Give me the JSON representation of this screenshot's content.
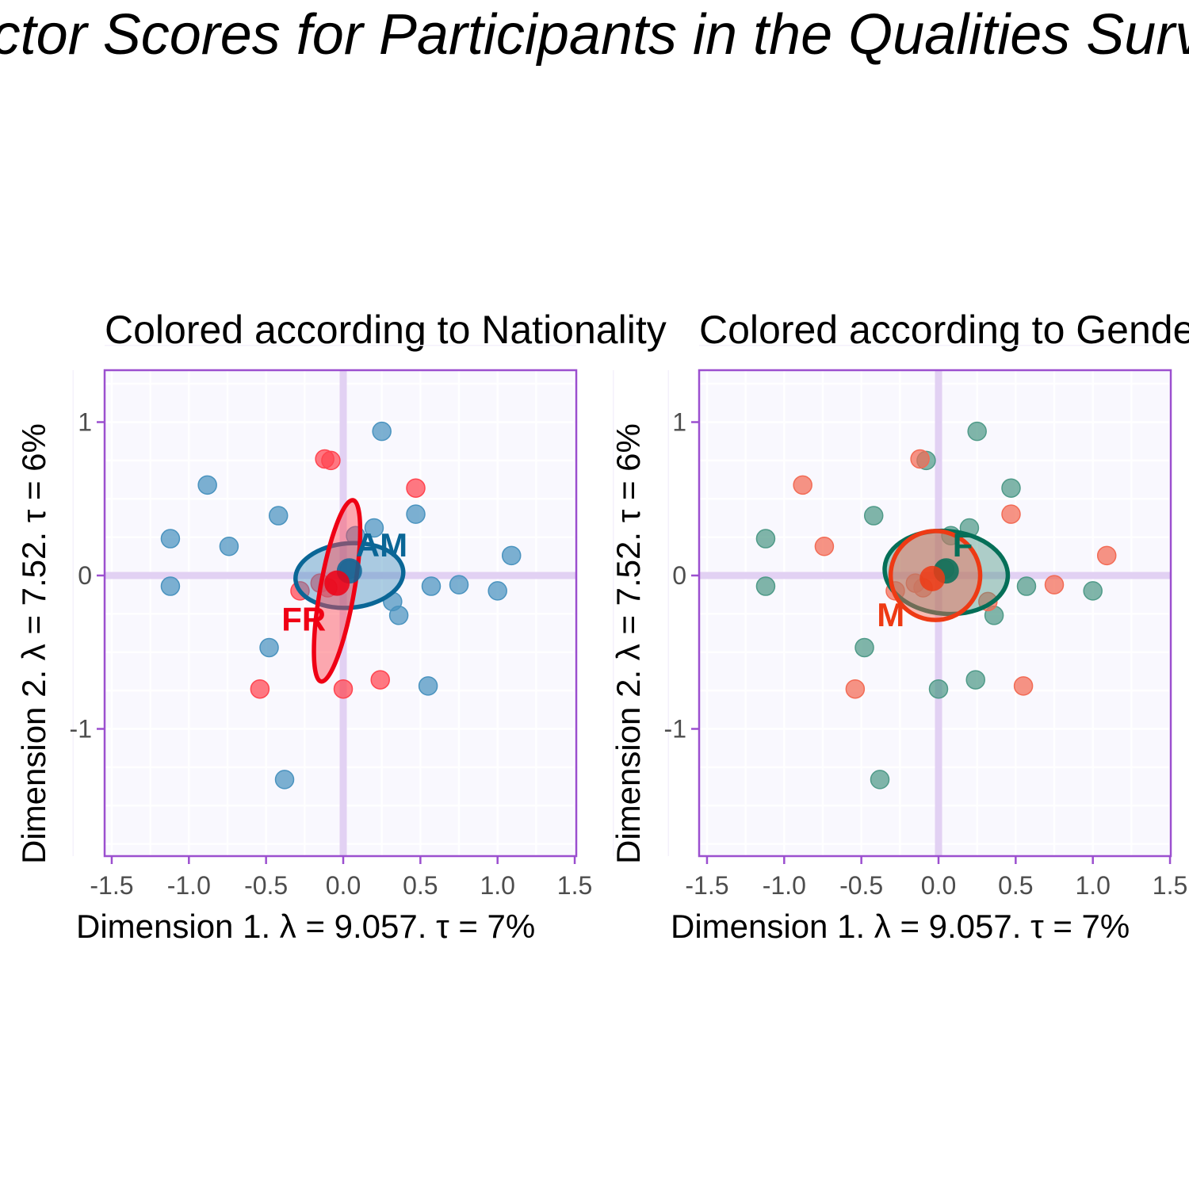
{
  "title": "Factor Scores for Participants in the Qualities Survey",
  "colors": {
    "background": "#ffffff",
    "panel_bg": "#f9f8fe",
    "frame": "#9b4fcf",
    "axis_line": "#e2d1f3",
    "grid_major": "#ffffff",
    "grid_minor": "#f4f1fb"
  },
  "panels": [
    {
      "title": "Colored according to Nationality",
      "xlabel": "Dimension 1.   λ = 9.057.  τ = 7%",
      "ylabel": "Dimension 2.   λ = 7.52.  τ = 6%"
    },
    {
      "title": "Colored according to Gender",
      "xlabel": "Dimension 1.   λ = 9.057.  τ = 7%",
      "ylabel": "Dimension 2.   λ = 7.52.  τ = 6%"
    }
  ],
  "chart_data": [
    {
      "type": "scatter",
      "title": "Colored according to Nationality",
      "xlabel": "Dimension 1.   λ = 9.057.  τ = 7%",
      "ylabel": "Dimension 2.   λ = 7.52.  τ = 6%",
      "xlim": [
        -1.5,
        1.5
      ],
      "ylim": [
        -1.8,
        1.3
      ],
      "xticks": [
        "-1.5",
        "-1.0",
        "-0.5",
        "0.0",
        "0.5",
        "1.0",
        "1.5"
      ],
      "yticks": [
        "-1",
        "0",
        "1"
      ],
      "grid": true,
      "series": [
        {
          "name": "AM",
          "color": "#4a93bf",
          "ellipse_color": "#0a6696",
          "points": [
            [
              0.25,
              0.94
            ],
            [
              -0.88,
              0.59
            ],
            [
              -0.42,
              0.39
            ],
            [
              -1.12,
              0.24
            ],
            [
              -0.74,
              0.19
            ],
            [
              0.08,
              0.26
            ],
            [
              0.2,
              0.31
            ],
            [
              0.47,
              0.4
            ],
            [
              1.09,
              0.13
            ],
            [
              -1.12,
              -0.07
            ],
            [
              0.57,
              -0.07
            ],
            [
              0.75,
              -0.06
            ],
            [
              1.0,
              -0.1
            ],
            [
              0.32,
              -0.17
            ],
            [
              0.36,
              -0.26
            ],
            [
              -0.48,
              -0.47
            ],
            [
              0.55,
              -0.72
            ],
            [
              -0.38,
              -1.33
            ],
            [
              0.04,
              0.04
            ]
          ],
          "mean": [
            0.04,
            0.03
          ],
          "ellipse": {
            "cx": 0.04,
            "cy": 0.0,
            "rx": 0.35,
            "ry": 0.21,
            "angle": -5
          }
        },
        {
          "name": "FR",
          "color": "#ff4550",
          "ellipse_color": "#ef0014",
          "points": [
            [
              -0.12,
              0.76
            ],
            [
              -0.08,
              0.75
            ],
            [
              0.47,
              0.57
            ],
            [
              -0.15,
              -0.05
            ],
            [
              -0.28,
              -0.1
            ],
            [
              -0.1,
              -0.08
            ],
            [
              -0.54,
              -0.74
            ],
            [
              0.0,
              -0.74
            ],
            [
              0.24,
              -0.68
            ]
          ],
          "mean": [
            -0.04,
            -0.05
          ],
          "ellipse": {
            "cx": -0.04,
            "cy": -0.1,
            "rx": 0.11,
            "ry": 0.6,
            "angle": 10
          }
        }
      ]
    },
    {
      "type": "scatter",
      "title": "Colored according to Gender",
      "xlabel": "Dimension 1.   λ = 9.057.  τ = 7%",
      "ylabel": "Dimension 2.   λ = 7.52.  τ = 6%",
      "xlim": [
        -1.5,
        1.5
      ],
      "ylim": [
        -1.8,
        1.3
      ],
      "xticks": [
        "-1.5",
        "-1.0",
        "-0.5",
        "0.0",
        "0.5",
        "1.0",
        "1.5"
      ],
      "yticks": [
        "-1",
        "0",
        "1"
      ],
      "grid": true,
      "series": [
        {
          "name": "F",
          "color": "#4f9a88",
          "ellipse_color": "#056f58",
          "points": [
            [
              0.25,
              0.94
            ],
            [
              -0.08,
              0.75
            ],
            [
              0.47,
              0.57
            ],
            [
              -0.42,
              0.39
            ],
            [
              -1.12,
              0.24
            ],
            [
              0.08,
              0.26
            ],
            [
              0.2,
              0.31
            ],
            [
              -1.12,
              -0.07
            ],
            [
              0.57,
              -0.07
            ],
            [
              1.0,
              -0.1
            ],
            [
              0.36,
              -0.26
            ],
            [
              -0.48,
              -0.47
            ],
            [
              0.0,
              -0.74
            ],
            [
              0.24,
              -0.68
            ],
            [
              -0.38,
              -1.33
            ],
            [
              0.04,
              0.04
            ]
          ],
          "mean": [
            0.05,
            0.03
          ],
          "ellipse": {
            "cx": 0.05,
            "cy": 0.02,
            "rx": 0.4,
            "ry": 0.27,
            "angle": 5
          }
        },
        {
          "name": "M",
          "color": "#f26b55",
          "ellipse_color": "#ee3a14",
          "points": [
            [
              -0.12,
              0.76
            ],
            [
              -0.88,
              0.59
            ],
            [
              -0.74,
              0.19
            ],
            [
              0.47,
              0.4
            ],
            [
              1.09,
              0.13
            ],
            [
              0.75,
              -0.06
            ],
            [
              -0.15,
              -0.05
            ],
            [
              -0.28,
              -0.1
            ],
            [
              0.32,
              -0.17
            ],
            [
              -0.54,
              -0.74
            ],
            [
              0.55,
              -0.72
            ],
            [
              -0.1,
              -0.08
            ]
          ],
          "mean": [
            -0.04,
            -0.02
          ],
          "ellipse": {
            "cx": -0.02,
            "cy": 0.0,
            "rx": 0.29,
            "ry": 0.29,
            "angle": 0
          }
        }
      ]
    }
  ]
}
